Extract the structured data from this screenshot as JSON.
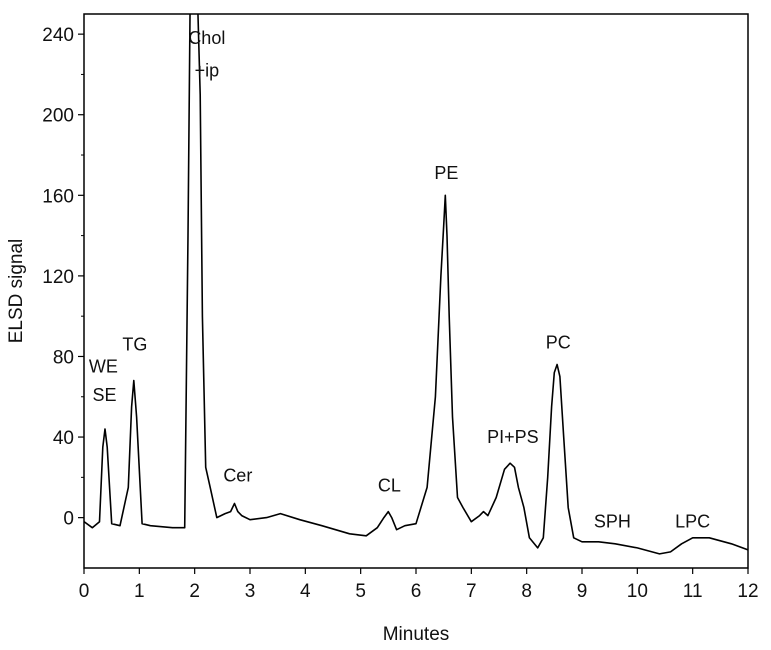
{
  "chart_data": {
    "type": "line",
    "title": "",
    "xlabel": "Minutes",
    "ylabel": "ELSD signal",
    "xlim": [
      0,
      12
    ],
    "ylim": [
      -25,
      250
    ],
    "x_ticks": [
      "0",
      "1",
      "2",
      "3",
      "4",
      "5",
      "6",
      "7",
      "8",
      "9",
      "10",
      "11",
      "12"
    ],
    "y_ticks": [
      "0",
      "40",
      "80",
      "120",
      "160",
      "200",
      "240"
    ],
    "grid": false,
    "legend": "none",
    "line_color": "#000000",
    "series": [
      {
        "x": [
          0.0,
          0.15,
          0.28,
          0.34,
          0.38,
          0.42,
          0.5,
          0.65,
          0.8,
          0.86,
          0.9,
          0.95,
          1.05,
          1.2,
          1.6,
          1.82,
          1.88,
          1.92,
          1.95,
          2.05,
          2.1,
          2.14,
          2.2,
          2.28,
          2.4,
          2.55,
          2.65,
          2.72,
          2.78,
          2.85,
          3.0,
          3.3,
          3.55,
          3.9,
          4.3,
          4.8,
          5.1,
          5.3,
          5.42,
          5.5,
          5.56,
          5.65,
          5.8,
          6.0,
          6.2,
          6.35,
          6.45,
          6.5,
          6.53,
          6.56,
          6.6,
          6.66,
          6.75,
          6.85,
          7.0,
          7.15,
          7.22,
          7.3,
          7.45,
          7.6,
          7.7,
          7.78,
          7.85,
          7.95,
          8.05,
          8.2,
          8.3,
          8.38,
          8.45,
          8.5,
          8.55,
          8.6,
          8.67,
          8.75,
          8.85,
          9.0,
          9.3,
          9.6,
          10.0,
          10.4,
          10.6,
          10.8,
          11.0,
          11.3,
          11.7,
          12.0
        ],
        "y": [
          -2,
          -5,
          -2,
          35,
          44,
          35,
          -3,
          -4,
          15,
          55,
          68,
          50,
          -3,
          -4,
          -5,
          -5,
          140,
          260,
          260,
          260,
          210,
          100,
          25,
          15,
          0,
          2,
          3,
          7,
          3,
          1,
          -1,
          0,
          2,
          -1,
          -4,
          -8,
          -9,
          -5,
          0,
          3,
          0,
          -6,
          -4,
          -3,
          15,
          60,
          120,
          145,
          160,
          140,
          100,
          50,
          10,
          5,
          -2,
          1,
          3,
          1,
          10,
          24,
          27,
          25,
          15,
          5,
          -10,
          -15,
          -10,
          20,
          55,
          72,
          76,
          70,
          40,
          5,
          -10,
          -12,
          -12,
          -13,
          -15,
          -18,
          -17,
          -13,
          -10,
          -10,
          -13,
          -16
        ]
      }
    ],
    "annotations": [
      {
        "text": "WE",
        "x": 0.35,
        "y": 72
      },
      {
        "text": "SE",
        "x": 0.37,
        "y": 58
      },
      {
        "text": "TG",
        "x": 0.92,
        "y": 83
      },
      {
        "text": "Chol",
        "x": 2.22,
        "y": 235
      },
      {
        "text": "+ip",
        "x": 2.22,
        "y": 219
      },
      {
        "text": "Cer",
        "x": 2.78,
        "y": 18
      },
      {
        "text": "CL",
        "x": 5.52,
        "y": 13
      },
      {
        "text": "PE",
        "x": 6.55,
        "y": 168
      },
      {
        "text": "PI+PS",
        "x": 7.75,
        "y": 37
      },
      {
        "text": "PC",
        "x": 8.57,
        "y": 84
      },
      {
        "text": "SPH",
        "x": 9.55,
        "y": -5
      },
      {
        "text": "LPC",
        "x": 11.0,
        "y": -5
      }
    ]
  }
}
